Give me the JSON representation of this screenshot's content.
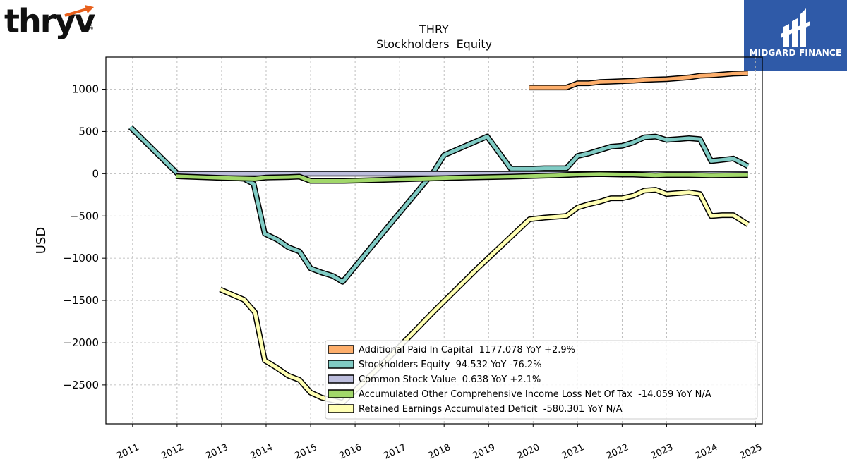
{
  "brand": {
    "logo_text": "thryv",
    "logo_mark": "®",
    "badge_name": "MIDGARD FINANCE"
  },
  "chart_data": {
    "type": "line",
    "title": "THRY",
    "subtitle": "Stockholders  Equity",
    "ylabel": "USD",
    "xlabel": "",
    "xlim": [
      2010.4,
      2025.15
    ],
    "ylim": [
      -2960,
      1380
    ],
    "yticks": [
      1000,
      500,
      0,
      -500,
      -1000,
      -1500,
      -2000,
      -2500
    ],
    "ytick_labels": [
      "1000",
      "500",
      "0",
      "−500",
      "−1000",
      "−1500",
      "−2000",
      "−2500"
    ],
    "xticks": [
      2011,
      2012,
      2013,
      2014,
      2015,
      2016,
      2017,
      2018,
      2019,
      2020,
      2021,
      2022,
      2023,
      2024,
      2025
    ],
    "xtick_labels": [
      "2011",
      "2012",
      "2013",
      "2014",
      "2015",
      "2016",
      "2017",
      "2018",
      "2019",
      "2020",
      "2021",
      "2022",
      "2023",
      "2024",
      "2025"
    ],
    "grid": true,
    "legend_position": "lower-right",
    "series": [
      {
        "name": "Additional Paid In Capital  1177.078 YoY +2.9%",
        "color": "#fdae6b",
        "points": [
          [
            2019.92,
            1020
          ],
          [
            2020.5,
            1020
          ],
          [
            2020.75,
            1020
          ],
          [
            2021.0,
            1070
          ],
          [
            2021.25,
            1070
          ],
          [
            2021.5,
            1085
          ],
          [
            2021.75,
            1090
          ],
          [
            2022.0,
            1095
          ],
          [
            2022.25,
            1100
          ],
          [
            2022.5,
            1110
          ],
          [
            2022.75,
            1115
          ],
          [
            2023.0,
            1120
          ],
          [
            2023.25,
            1130
          ],
          [
            2023.5,
            1140
          ],
          [
            2023.75,
            1160
          ],
          [
            2024.0,
            1165
          ],
          [
            2024.25,
            1175
          ],
          [
            2024.5,
            1185
          ],
          [
            2024.83,
            1190
          ]
        ]
      },
      {
        "name": "Stockholders Equity  94.532 YoY -76.2%",
        "color": "#80cbc4",
        "points": [
          [
            2010.95,
            550
          ],
          [
            2012.0,
            5
          ],
          [
            2013.0,
            -40
          ],
          [
            2013.5,
            -60
          ],
          [
            2013.72,
            -120
          ],
          [
            2013.97,
            -710
          ],
          [
            2014.25,
            -780
          ],
          [
            2014.5,
            -870
          ],
          [
            2014.75,
            -920
          ],
          [
            2015.0,
            -1120
          ],
          [
            2015.25,
            -1170
          ],
          [
            2015.5,
            -1210
          ],
          [
            2015.72,
            -1280
          ],
          [
            2016.75,
            -620
          ],
          [
            2017.75,
            10
          ],
          [
            2018.0,
            220
          ],
          [
            2018.97,
            440
          ],
          [
            2019.5,
            60
          ],
          [
            2020.0,
            60
          ],
          [
            2020.25,
            65
          ],
          [
            2020.75,
            65
          ],
          [
            2021.0,
            210
          ],
          [
            2021.25,
            240
          ],
          [
            2021.5,
            280
          ],
          [
            2021.75,
            320
          ],
          [
            2022.0,
            330
          ],
          [
            2022.25,
            370
          ],
          [
            2022.5,
            430
          ],
          [
            2022.75,
            440
          ],
          [
            2023.0,
            400
          ],
          [
            2023.25,
            410
          ],
          [
            2023.5,
            420
          ],
          [
            2023.75,
            410
          ],
          [
            2024.0,
            150
          ],
          [
            2024.25,
            165
          ],
          [
            2024.5,
            180
          ],
          [
            2024.83,
            90
          ]
        ]
      },
      {
        "name": "Common Stock Value  0.638 YoY +2.1%",
        "color": "#bcbddc",
        "points": [
          [
            2012.0,
            0
          ],
          [
            2013.0,
            0
          ],
          [
            2014.0,
            0
          ],
          [
            2015.0,
            0
          ],
          [
            2016.0,
            0
          ],
          [
            2017.0,
            0
          ],
          [
            2018.0,
            0
          ],
          [
            2019.0,
            0
          ],
          [
            2020.0,
            0
          ],
          [
            2021.0,
            0
          ],
          [
            2022.0,
            0
          ],
          [
            2023.0,
            0
          ],
          [
            2024.0,
            0
          ],
          [
            2024.83,
            0
          ]
        ]
      },
      {
        "name": "Accumulated Other Comprehensive Income Loss Net Of Tax  -14.059 YoY N/A",
        "color": "#a1d76a",
        "points": [
          [
            2011.97,
            -30
          ],
          [
            2013.0,
            -50
          ],
          [
            2013.75,
            -60
          ],
          [
            2014.0,
            -45
          ],
          [
            2014.5,
            -40
          ],
          [
            2014.75,
            -35
          ],
          [
            2015.0,
            -85
          ],
          [
            2015.75,
            -85
          ],
          [
            2016.5,
            -75
          ],
          [
            2017.5,
            -60
          ],
          [
            2018.5,
            -45
          ],
          [
            2019.5,
            -35
          ],
          [
            2020.5,
            -20
          ],
          [
            2021.0,
            -10
          ],
          [
            2021.5,
            -5
          ],
          [
            2022.0,
            -10
          ],
          [
            2022.25,
            -10
          ],
          [
            2022.5,
            -15
          ],
          [
            2022.75,
            -20
          ],
          [
            2023.0,
            -15
          ],
          [
            2023.5,
            -15
          ],
          [
            2024.0,
            -20
          ],
          [
            2024.83,
            -15
          ]
        ]
      },
      {
        "name": "Retained Earnings Accumulated Deficit  -580.301 YoY N/A",
        "color": "#ffffb3",
        "points": [
          [
            2012.97,
            -1370
          ],
          [
            2013.5,
            -1490
          ],
          [
            2013.75,
            -1640
          ],
          [
            2013.97,
            -2210
          ],
          [
            2014.25,
            -2300
          ],
          [
            2014.5,
            -2390
          ],
          [
            2014.75,
            -2440
          ],
          [
            2015.0,
            -2590
          ],
          [
            2015.25,
            -2650
          ],
          [
            2015.72,
            -2710
          ],
          [
            2016.75,
            -2180
          ],
          [
            2017.75,
            -1640
          ],
          [
            2018.75,
            -1120
          ],
          [
            2019.92,
            -540
          ],
          [
            2020.25,
            -520
          ],
          [
            2020.75,
            -500
          ],
          [
            2021.0,
            -400
          ],
          [
            2021.25,
            -360
          ],
          [
            2021.5,
            -330
          ],
          [
            2021.75,
            -290
          ],
          [
            2022.0,
            -290
          ],
          [
            2022.25,
            -260
          ],
          [
            2022.5,
            -200
          ],
          [
            2022.75,
            -190
          ],
          [
            2023.0,
            -240
          ],
          [
            2023.25,
            -230
          ],
          [
            2023.5,
            -220
          ],
          [
            2023.75,
            -240
          ],
          [
            2024.0,
            -500
          ],
          [
            2024.25,
            -490
          ],
          [
            2024.5,
            -490
          ],
          [
            2024.83,
            -600
          ]
        ]
      }
    ]
  }
}
